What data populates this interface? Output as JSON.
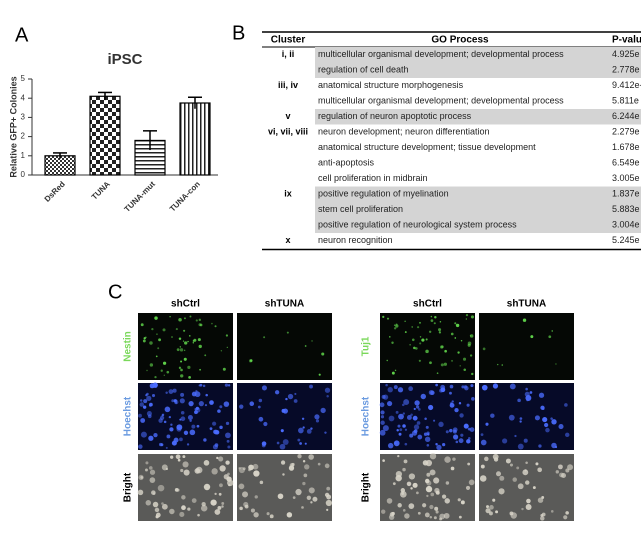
{
  "panel_labels": [
    "A",
    "B",
    "C"
  ],
  "chart_data": {
    "type": "bar",
    "title": "iPSC",
    "y_label": "Relative GFP+ Colonies",
    "categories": [
      "DsRed",
      "TUNA",
      "TUNA-mut",
      "TUNA-con"
    ],
    "values": [
      1.0,
      4.1,
      1.8,
      3.75
    ],
    "errors": [
      0.15,
      0.2,
      0.5,
      0.3
    ],
    "patterns": [
      "checker-small",
      "checker-large",
      "horizontal",
      "vertical"
    ],
    "color": "#000000",
    "ylim": [
      0,
      5
    ],
    "yticks": [
      0,
      1,
      2,
      3,
      4,
      5
    ]
  },
  "table": {
    "headers": [
      "Cluster",
      "GO Process",
      "P-valu"
    ],
    "groups": [
      {
        "cluster": "i, ii",
        "shaded": true,
        "rows": [
          {
            "process": "multicellular organismal development; developmental process",
            "p_value": "4.925e"
          },
          {
            "process": "regulation of cell death",
            "p_value": "2.778e"
          }
        ]
      },
      {
        "cluster": "iii, iv",
        "shaded": false,
        "rows": [
          {
            "process": "anatomical structure morphogenesis",
            "p_value": "9.412e-"
          },
          {
            "process": "multicellular organismal development; developmental process",
            "p_value": "5.811e"
          }
        ]
      },
      {
        "cluster": "v",
        "shaded": true,
        "rows": [
          {
            "process": "regulation of neuron apoptotic process",
            "p_value": "6.244e"
          }
        ]
      },
      {
        "cluster": "vi, vii, viii",
        "shaded": false,
        "rows": [
          {
            "process": "neuron development; neuron differentiation",
            "p_value": "2.279e"
          },
          {
            "process": "anatomical structure development; tissue development",
            "p_value": "1.678e"
          },
          {
            "process": "anti-apoptosis",
            "p_value": "6.549e"
          },
          {
            "process": "cell proliferation in midbrain",
            "p_value": "3.005e"
          }
        ]
      },
      {
        "cluster": "ix",
        "shaded": true,
        "rows": [
          {
            "process": "positive regulation of myelination",
            "p_value": "1.837e"
          },
          {
            "process": "stem cell proliferation",
            "p_value": "5.883e"
          },
          {
            "process": "positive regulation of neurological system process",
            "p_value": "3.004e"
          }
        ]
      },
      {
        "cluster": "x",
        "shaded": false,
        "rows": [
          {
            "process": "neuron recognition",
            "p_value": "5.245e"
          }
        ]
      }
    ]
  },
  "figure_c": {
    "panels": [
      {
        "column_headers": [
          "shCtrl",
          "shTUNA"
        ],
        "row_labels": [
          "Nestin",
          "Hoechst",
          "Bright"
        ]
      },
      {
        "column_headers": [
          "shCtrl",
          "shTUNA"
        ],
        "row_labels": [
          "Tuj1",
          "Hoechst",
          "Bright"
        ]
      }
    ]
  }
}
